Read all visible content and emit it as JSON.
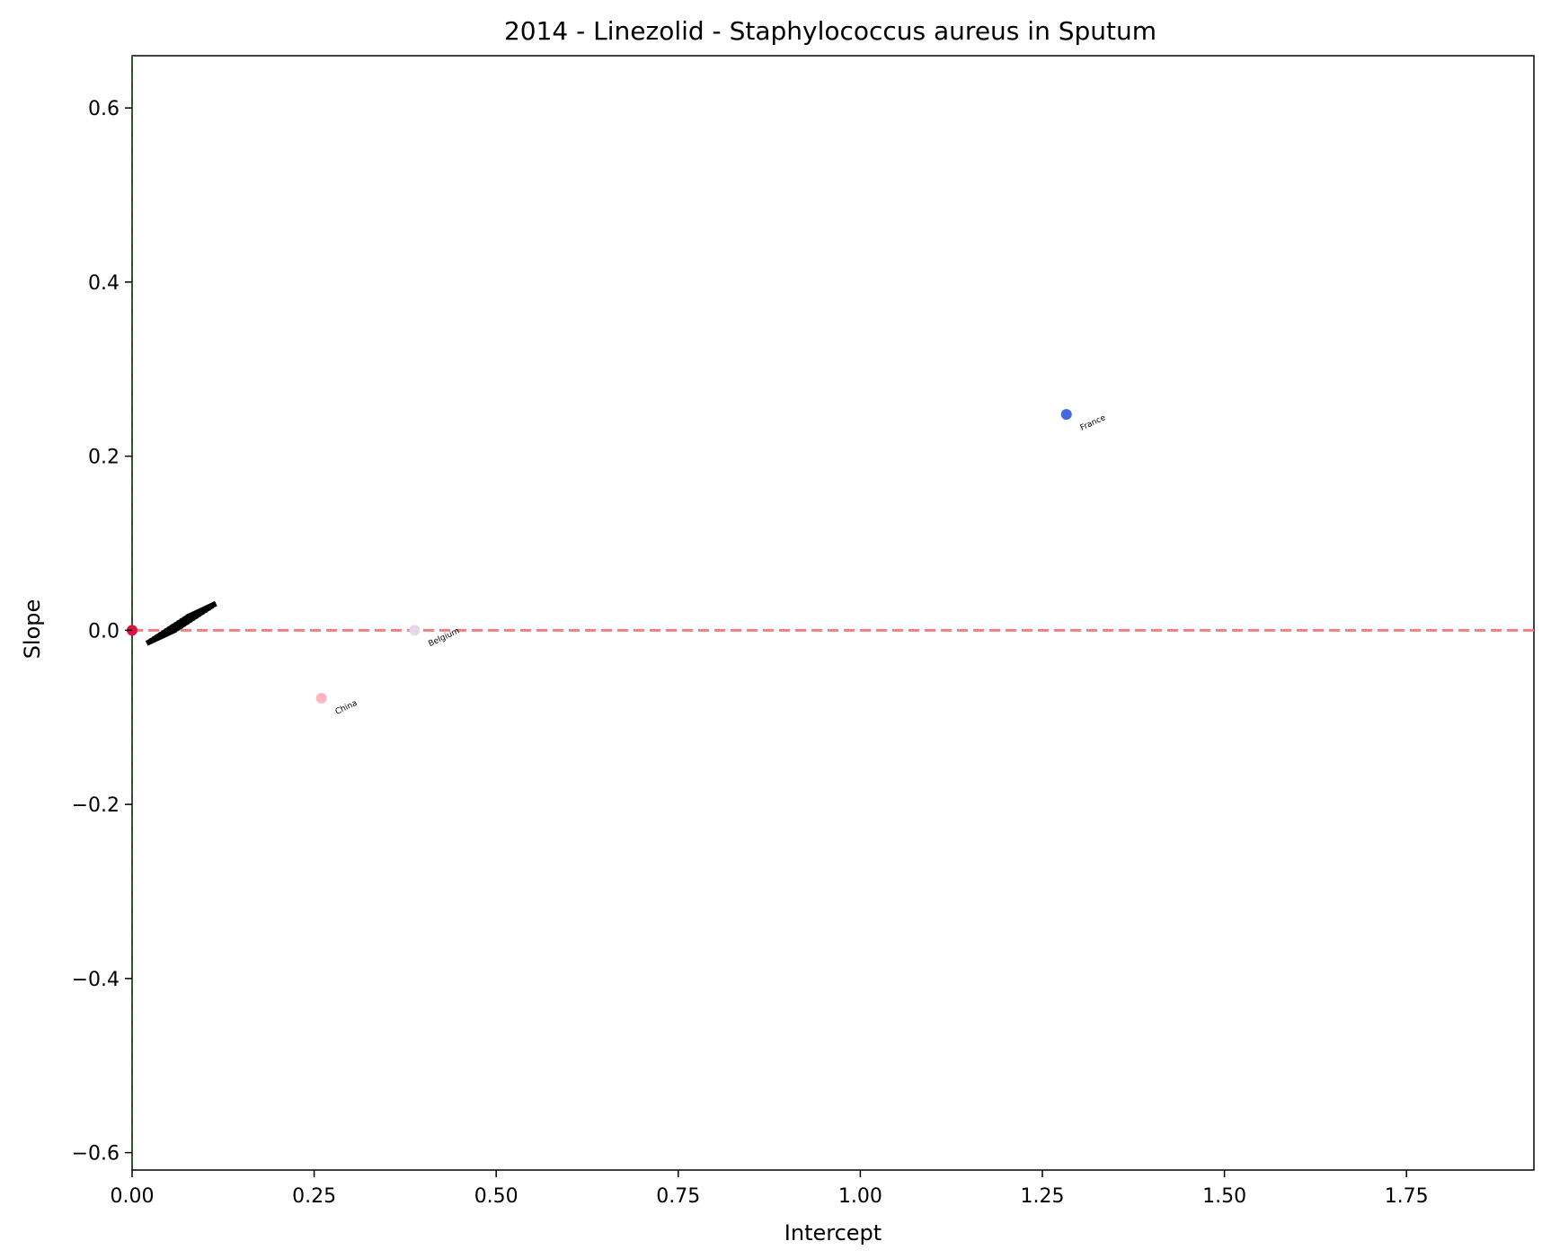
{
  "chart_data": {
    "type": "scatter",
    "title": "2014 - Linezolid - Staphylococcus aureus in Sputum",
    "xlabel": "Intercept",
    "ylabel": "Slope",
    "xlim": [
      0.0,
      1.925
    ],
    "ylim": [
      -0.62,
      0.66
    ],
    "grid": false,
    "x_ticks": [
      0.0,
      0.25,
      0.5,
      0.75,
      1.0,
      1.25,
      1.5,
      1.75
    ],
    "x_tick_labels": [
      "0.00",
      "0.25",
      "0.50",
      "0.75",
      "1.00",
      "1.25",
      "1.50",
      "1.75"
    ],
    "y_ticks": [
      0.6,
      0.4,
      0.2,
      0.0,
      -0.2,
      -0.4,
      -0.6
    ],
    "y_tick_labels": [
      "0.6",
      "0.4",
      "0.2",
      "0.0",
      "−0.2",
      "−0.4",
      "−0.6"
    ],
    "reference_lines": [
      {
        "orientation": "horizontal",
        "value": 0.0,
        "color": "#f08080",
        "style": "dashed"
      },
      {
        "orientation": "vertical",
        "value": 0.0,
        "color": "#2e5d2e",
        "style": "dashed"
      }
    ],
    "points": [
      {
        "label": "France",
        "x": 1.283,
        "y": 0.248,
        "color": "#4169e1"
      },
      {
        "label": "Belgium",
        "x": 0.388,
        "y": 0.0,
        "color": "#e6d8ea"
      },
      {
        "label": "China",
        "x": 0.26,
        "y": -0.078,
        "color": "#ffb6c1"
      },
      {
        "label": "",
        "x": 0.0,
        "y": 0.0,
        "color": "#dc143c"
      }
    ],
    "overlapping_label_cluster": {
      "note_visible": false,
      "x_range": [
        0.02,
        0.12
      ],
      "y_range": [
        -0.015,
        0.015
      ],
      "color": "#000000"
    }
  }
}
